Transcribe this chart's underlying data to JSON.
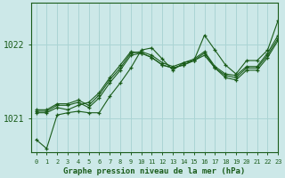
{
  "title": "Graphe pression niveau de la mer (hPa)",
  "background_color": "#cce8e8",
  "grid_color": "#aad4d4",
  "line_color": "#1a5c1a",
  "ylabel_ticks": [
    1021,
    1022
  ],
  "xlim": [
    -0.5,
    23
  ],
  "ylim": [
    1020.55,
    1022.55
  ],
  "series": [
    [
      1020.72,
      1020.6,
      1021.05,
      1021.08,
      1021.1,
      1021.08,
      1021.08,
      1021.3,
      1021.48,
      1021.68,
      1021.92,
      1021.95,
      1021.8,
      1021.65,
      1021.75,
      1021.78,
      1022.12,
      1021.92,
      1021.72,
      1021.6,
      1021.78,
      1021.78,
      1021.92,
      1022.32
    ],
    [
      1021.08,
      1021.08,
      1021.15,
      1021.12,
      1021.18,
      1021.22,
      1021.35,
      1021.55,
      1021.72,
      1021.9,
      1021.88,
      1021.82,
      1021.72,
      1021.68,
      1021.72,
      1021.78,
      1021.85,
      1021.68,
      1021.55,
      1021.52,
      1021.65,
      1021.65,
      1021.82,
      1022.05
    ],
    [
      1021.1,
      1021.1,
      1021.18,
      1021.18,
      1021.22,
      1021.15,
      1021.28,
      1021.48,
      1021.65,
      1021.85,
      1021.88,
      1021.82,
      1021.72,
      1021.68,
      1021.72,
      1021.78,
      1021.88,
      1021.68,
      1021.58,
      1021.55,
      1021.68,
      1021.68,
      1021.85,
      1022.08
    ],
    [
      1021.12,
      1021.12,
      1021.2,
      1021.2,
      1021.25,
      1021.18,
      1021.32,
      1021.52,
      1021.68,
      1021.88,
      1021.9,
      1021.85,
      1021.75,
      1021.7,
      1021.75,
      1021.8,
      1021.9,
      1021.7,
      1021.6,
      1021.58,
      1021.7,
      1021.7,
      1021.88,
      1022.12
    ]
  ]
}
